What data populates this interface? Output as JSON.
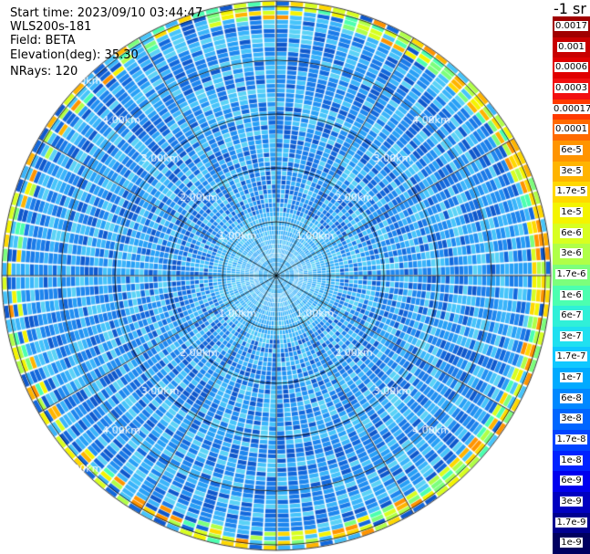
{
  "header": {
    "start_time": "Start time: 2023/09/10 03:44:47",
    "instrument": "WLS200s-181",
    "field": "Field: BETA",
    "elevation": "Elevation(deg): 35.30",
    "nrays": "NRays: 120"
  },
  "colorbar": {
    "unit_label": "-1 sr",
    "labels": [
      "0.0017",
      "0.001",
      "0.0006",
      "0.0003",
      "0.00017",
      "0.0001",
      "6e-5",
      "3e-5",
      "1.7e-5",
      "1e-5",
      "6e-6",
      "3e-6",
      "1.7e-6",
      "1e-6",
      "6e-7",
      "3e-7",
      "1.7e-7",
      "1e-7",
      "6e-8",
      "3e-8",
      "1.7e-8",
      "1e-8",
      "6e-9",
      "3e-9",
      "1.7e-9",
      "1e-9"
    ],
    "colors": [
      "#a00000",
      "#c80000",
      "#e00000",
      "#f21010",
      "#ff3a00",
      "#ff6a00",
      "#ff9400",
      "#ffb400",
      "#ffd800",
      "#f4f400",
      "#d8ff20",
      "#b0ff48",
      "#7cff7c",
      "#4cffb0",
      "#30f0d8",
      "#20e0f0",
      "#10c8ff",
      "#00aaff",
      "#0088ff",
      "#0066ff",
      "#0044ff",
      "#0022ff",
      "#0000ee",
      "#0000c0",
      "#000090",
      "#000060"
    ]
  },
  "ppi": {
    "range_rings_km": [
      1.0,
      2.0,
      3.0,
      4.0,
      5.0
    ],
    "range_labels": [
      "1.00km",
      "2.00km",
      "3.00km",
      "4.00km",
      "5.00km"
    ],
    "n_rays": 120,
    "gridline_spokes": 12
  }
}
